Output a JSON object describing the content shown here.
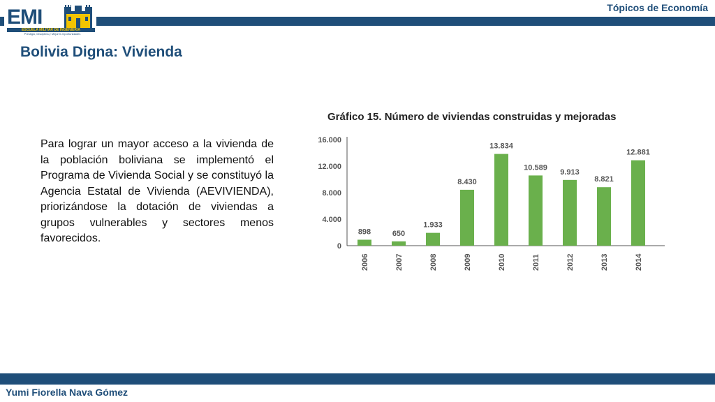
{
  "header": {
    "course": "Tópicos de Economía",
    "logo": {
      "text": "EMI",
      "banner": "ESCUELA MILITAR DE INGENIERIA",
      "motto": "Prestigio, Disciplina y Mejores Oportunidades"
    }
  },
  "slide": {
    "title": "Bolivia Digna: Vivienda",
    "paragraph": "Para lograr un mayor acceso a la vivienda de la población boliviana se implementó el Programa de Vivienda Social y se constituyó la Agencia Estatal de Vivienda (AEVIVIENDA), priorizándose la dotación de viviendas a grupos vulnerables y sectores menos favorecidos."
  },
  "footer": {
    "author": "Yumi Fiorella Nava Gómez"
  },
  "colors": {
    "brand_blue": "#1f4e79",
    "bar_green": "#6ab04c"
  },
  "chart_data": {
    "type": "bar",
    "title": "Gráfico 15. Número de viviendas construidas y mejoradas",
    "categories": [
      "2006",
      "2007",
      "2008",
      "2009",
      "2010",
      "2011",
      "2012",
      "2013",
      "2014"
    ],
    "values": [
      898,
      650,
      1933,
      8430,
      13834,
      10589,
      9913,
      8821,
      12881
    ],
    "value_labels": [
      "898",
      "650",
      "1.933",
      "8.430",
      "13.834",
      "10.589",
      "9.913",
      "8.821",
      "12.881"
    ],
    "yticks": [
      0,
      4000,
      8000,
      12000,
      16000
    ],
    "ytick_labels": [
      "0",
      "4.000",
      "8.000",
      "12.000",
      "16.000"
    ],
    "ylim": [
      0,
      16000
    ],
    "xlabel": "",
    "ylabel": "",
    "grid": false
  }
}
